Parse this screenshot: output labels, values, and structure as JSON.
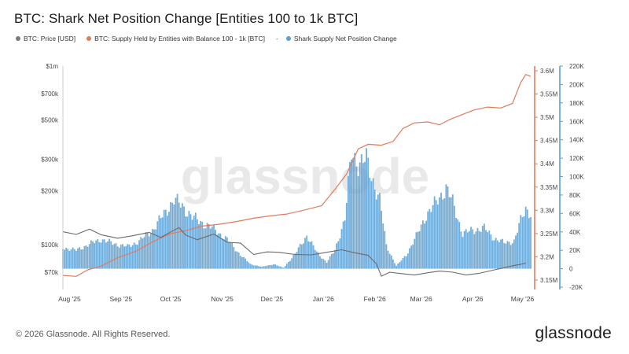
{
  "page": {
    "title": "BTC: Shark Net Position Change [Entities 100 to 1k BTC]",
    "footer": "© 2026 Glassnode. All Rights Reserved.",
    "brand": "glassnode",
    "watermark": "glassnode"
  },
  "legend": [
    {
      "label": "BTC: Price [USD]",
      "color": "#7a7a7a",
      "marker": "dot"
    },
    {
      "label": "BTC: Supply Held by Entities with Balance 100 - 1k [BTC]",
      "color": "#e07c5c",
      "marker": "dot"
    },
    {
      "label": "Shark Supply Net Position Change",
      "color": "#5a9fd4",
      "marker": "dot",
      "prefix": "-"
    }
  ],
  "chart_data": {
    "type": "bar",
    "x_ticks": [
      "Aug '25",
      "Sep '25",
      "Oct '25",
      "Nov '25",
      "Dec '25",
      "Jan '26",
      "Feb '26",
      "Mar '26",
      "Apr '26",
      "May '26"
    ],
    "x_range": [
      "2025-07-28",
      "2026-05-06"
    ],
    "left_axis": {
      "label": "BTC: Price [USD]",
      "scale": "log",
      "ticks": [
        "$70k",
        "$100k",
        "$200k",
        "$300k",
        "$500k",
        "$700k",
        "$1m"
      ],
      "values": [
        70000,
        100000,
        200000,
        300000,
        500000,
        700000,
        1000000
      ]
    },
    "right_axis_supply": {
      "ticks": [
        "3.15M",
        "3.2M",
        "3.25M",
        "3.3M",
        "3.35M",
        "3.4M",
        "3.45M",
        "3.5M",
        "3.55M",
        "3.6M"
      ],
      "range": [
        3150000,
        3620000
      ],
      "color": "#e07c5c"
    },
    "right_axis_change": {
      "ticks": [
        "-20K",
        "0",
        "20K",
        "40K",
        "60K",
        "80K",
        "100K",
        "120K",
        "140K",
        "160K",
        "180K",
        "200K",
        "220K"
      ],
      "range": [
        -20000,
        220000
      ],
      "color": "#5a9fd4"
    },
    "series": [
      {
        "name": "BTC: Price [USD]",
        "type": "line",
        "color": "#6b6b6b",
        "points": [
          [
            "2025-07-28",
            118000
          ],
          [
            "2025-08-05",
            114000
          ],
          [
            "2025-08-13",
            122000
          ],
          [
            "2025-08-20",
            113500
          ],
          [
            "2025-08-30",
            108500
          ],
          [
            "2025-09-08",
            112000
          ],
          [
            "2025-09-18",
            117000
          ],
          [
            "2025-09-25",
            109500
          ],
          [
            "2025-10-02",
            119000
          ],
          [
            "2025-10-06",
            124500
          ],
          [
            "2025-10-10",
            113000
          ],
          [
            "2025-10-17",
            106500
          ],
          [
            "2025-10-27",
            114500
          ],
          [
            "2025-11-04",
            103000
          ],
          [
            "2025-11-12",
            102000
          ],
          [
            "2025-11-20",
            88000
          ],
          [
            "2025-11-28",
            91000
          ],
          [
            "2025-12-05",
            90500
          ],
          [
            "2025-12-15",
            88000
          ],
          [
            "2025-12-25",
            87500
          ],
          [
            "2026-01-03",
            90500
          ],
          [
            "2026-01-12",
            93500
          ],
          [
            "2026-01-20",
            90000
          ],
          [
            "2026-01-28",
            87000
          ],
          [
            "2026-02-02",
            78000
          ],
          [
            "2026-02-05",
            66500
          ],
          [
            "2026-02-10",
            70000
          ],
          [
            "2026-02-18",
            68500
          ],
          [
            "2026-02-25",
            67500
          ],
          [
            "2026-03-05",
            69500
          ],
          [
            "2026-03-12",
            71000
          ],
          [
            "2026-03-20",
            70000
          ],
          [
            "2026-03-28",
            67500
          ],
          [
            "2026-04-05",
            69000
          ],
          [
            "2026-04-15",
            72500
          ],
          [
            "2026-04-25",
            76000
          ],
          [
            "2026-05-03",
            78500
          ]
        ]
      },
      {
        "name": "BTC: Supply Held by Entities with Balance 100 - 1k [BTC]",
        "type": "line",
        "color": "#e07c5c",
        "points": [
          [
            "2025-07-28",
            3160000
          ],
          [
            "2025-08-05",
            3158000
          ],
          [
            "2025-08-12",
            3172000
          ],
          [
            "2025-08-20",
            3180000
          ],
          [
            "2025-08-30",
            3198000
          ],
          [
            "2025-09-10",
            3212000
          ],
          [
            "2025-09-20",
            3232000
          ],
          [
            "2025-10-01",
            3250000
          ],
          [
            "2025-10-10",
            3256000
          ],
          [
            "2025-10-20",
            3266000
          ],
          [
            "2025-10-30",
            3270000
          ],
          [
            "2025-11-10",
            3276000
          ],
          [
            "2025-11-20",
            3283000
          ],
          [
            "2025-11-30",
            3288000
          ],
          [
            "2025-12-10",
            3292000
          ],
          [
            "2025-12-20",
            3300000
          ],
          [
            "2025-12-31",
            3310000
          ],
          [
            "2026-01-08",
            3345000
          ],
          [
            "2026-01-15",
            3378000
          ],
          [
            "2026-01-22",
            3432000
          ],
          [
            "2026-01-28",
            3442000
          ],
          [
            "2026-02-05",
            3440000
          ],
          [
            "2026-02-12",
            3448000
          ],
          [
            "2026-02-18",
            3476000
          ],
          [
            "2026-02-25",
            3488000
          ],
          [
            "2026-03-05",
            3490000
          ],
          [
            "2026-03-12",
            3484000
          ],
          [
            "2026-03-18",
            3495000
          ],
          [
            "2026-03-25",
            3505000
          ],
          [
            "2026-04-02",
            3516000
          ],
          [
            "2026-04-10",
            3522000
          ],
          [
            "2026-04-18",
            3520000
          ],
          [
            "2026-04-25",
            3530000
          ],
          [
            "2026-04-30",
            3575000
          ],
          [
            "2026-05-03",
            3592000
          ],
          [
            "2026-05-06",
            3588000
          ]
        ]
      },
      {
        "name": "Shark Supply Net Position Change",
        "type": "bar",
        "color": "#5a9fd4",
        "points": [
          [
            "2025-07-28",
            23000
          ],
          [
            "2025-08-05",
            20000
          ],
          [
            "2025-08-12",
            26000
          ],
          [
            "2025-08-20",
            32000
          ],
          [
            "2025-08-28",
            27000
          ],
          [
            "2025-09-05",
            24000
          ],
          [
            "2025-09-12",
            30000
          ],
          [
            "2025-09-20",
            42000
          ],
          [
            "2025-09-28",
            62000
          ],
          [
            "2025-10-03",
            75000
          ],
          [
            "2025-10-08",
            68000
          ],
          [
            "2025-10-14",
            56000
          ],
          [
            "2025-10-20",
            50000
          ],
          [
            "2025-10-28",
            42000
          ],
          [
            "2025-11-05",
            30000
          ],
          [
            "2025-11-12",
            15000
          ],
          [
            "2025-11-18",
            5000
          ],
          [
            "2025-11-25",
            2000
          ],
          [
            "2025-12-02",
            5000
          ],
          [
            "2025-12-08",
            1000
          ],
          [
            "2025-12-15",
            16000
          ],
          [
            "2025-12-22",
            36000
          ],
          [
            "2025-12-28",
            18000
          ],
          [
            "2026-01-03",
            7000
          ],
          [
            "2026-01-08",
            20000
          ],
          [
            "2026-01-14",
            55000
          ],
          [
            "2026-01-18",
            125000
          ],
          [
            "2026-01-22",
            115000
          ],
          [
            "2026-01-27",
            118000
          ],
          [
            "2026-01-30",
            100000
          ],
          [
            "2026-02-04",
            75000
          ],
          [
            "2026-02-08",
            25000
          ],
          [
            "2026-02-14",
            3000
          ],
          [
            "2026-02-20",
            15000
          ],
          [
            "2026-02-26",
            35000
          ],
          [
            "2026-03-04",
            58000
          ],
          [
            "2026-03-10",
            72000
          ],
          [
            "2026-03-16",
            88000
          ],
          [
            "2026-03-20",
            72000
          ],
          [
            "2026-03-26",
            38000
          ],
          [
            "2026-04-01",
            42000
          ],
          [
            "2026-04-08",
            44000
          ],
          [
            "2026-04-14",
            33000
          ],
          [
            "2026-04-20",
            28000
          ],
          [
            "2026-04-26",
            30000
          ],
          [
            "2026-04-30",
            52000
          ],
          [
            "2026-05-03",
            66000
          ],
          [
            "2026-05-06",
            60000
          ]
        ]
      }
    ],
    "grid": false
  }
}
